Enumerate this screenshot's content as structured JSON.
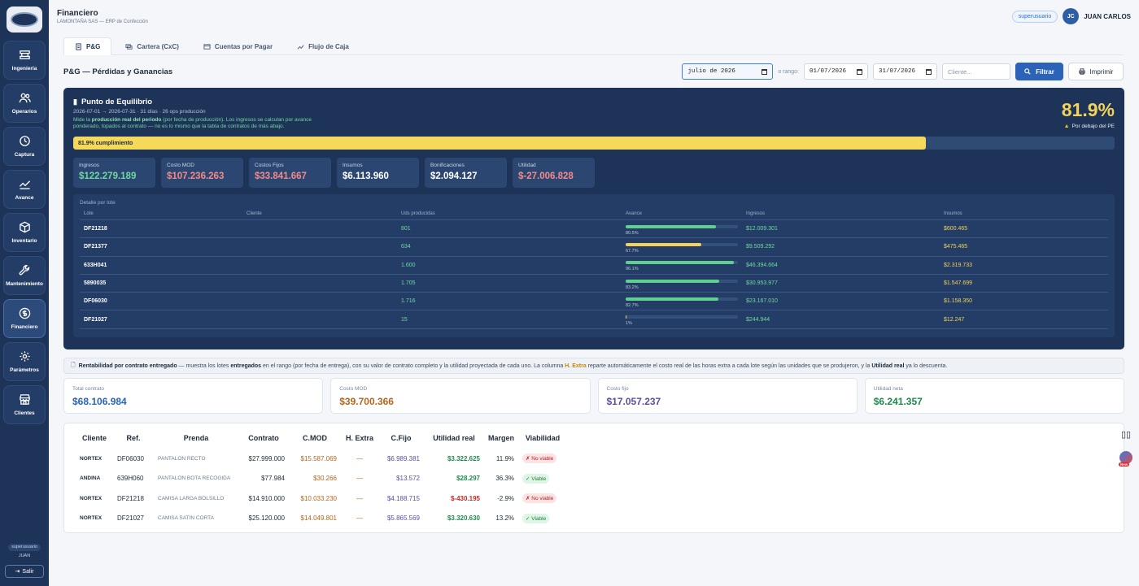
{
  "app": {
    "title": "Financiero",
    "subtitle": "LAMONTAÑA SAS — ERP de Confección"
  },
  "user": {
    "role": "superusuario",
    "initials": "JC",
    "name": "JUAN CARLOS",
    "side_role": "superusuario",
    "side_name": "JUAN"
  },
  "sidebar": {
    "items": [
      {
        "label": "Ingeniería",
        "icon": "engineering-icon"
      },
      {
        "label": "Operarios",
        "icon": "users-icon"
      },
      {
        "label": "Captura",
        "icon": "clock-icon"
      },
      {
        "label": "Avance",
        "icon": "trend-icon"
      },
      {
        "label": "Inventario",
        "icon": "box-icon"
      },
      {
        "label": "Mantenimiento",
        "icon": "wrench-icon"
      },
      {
        "label": "Financiero",
        "icon": "money-icon"
      },
      {
        "label": "Parámetros",
        "icon": "gear-icon"
      },
      {
        "label": "Clientes",
        "icon": "store-icon"
      }
    ],
    "logout": "Salir"
  },
  "tabs": [
    "P&G",
    "Cartera (CxC)",
    "Cuentas por Pagar",
    "Flujo de Caja"
  ],
  "section_title": "P&G — Pérdidas y Ganancias",
  "filters": {
    "month": "julio de 2026",
    "o_rango": "o rango:",
    "date_from": "01/07/2026",
    "date_to": "31/07/2026",
    "client_placeholder": "Cliente...",
    "filter_btn": "Filtrar",
    "print_btn": "Imprimir"
  },
  "pe": {
    "title": "Punto de Equilibrio",
    "sub": "2026-07-01 → 2026-07-31 · 31 días · 26 ops producción",
    "desc_pre": "Mide la ",
    "desc_bold": "producción real del periodo",
    "desc_post": " (por fecha de producción). Los ingresos se calculan por avance ponderado, topados al contrato — no es lo mismo que la tabla de contratos de más abajo.",
    "pct": "81.9%",
    "pct_value": 81.9,
    "pct_note": "Por debajo del PE",
    "bar_label": "81.9% cumplimiento",
    "kpis": [
      {
        "label": "Ingresos",
        "value": "$122.279.189",
        "color": "#6fd8a0"
      },
      {
        "label": "Costo MOD",
        "value": "$107.236.263",
        "color": "#f28b8b"
      },
      {
        "label": "Costos Fijos",
        "value": "$33.841.667",
        "color": "#f28b8b"
      },
      {
        "label": "Insumos",
        "value": "$6.113.960",
        "color": "#ffffff"
      },
      {
        "label": "Bonificaciones",
        "value": "$2.094.127",
        "color": "#ffffff"
      },
      {
        "label": "Utilidad",
        "value": "$-27.006.828",
        "color": "#f28b8b"
      }
    ],
    "lots_title": "Detalle por lote",
    "lots_headers": [
      "Lote",
      "Cliente",
      "Uds producidas",
      "Avance",
      "Ingresos",
      "Insumos"
    ],
    "lots": [
      {
        "lote": "DF21218",
        "cliente": "",
        "uds": "801",
        "avance": 80.5,
        "avance_txt": "80.5%",
        "ingresos": "$12.009.301",
        "insumos": "$600.465"
      },
      {
        "lote": "DF21377",
        "cliente": "",
        "uds": "634",
        "avance": 67.7,
        "avance_txt": "67.7%",
        "ingresos": "$9.509.292",
        "insumos": "$475.465"
      },
      {
        "lote": "633H041",
        "cliente": "",
        "uds": "1.600",
        "avance": 96.1,
        "avance_txt": "96.1%",
        "ingresos": "$46.394.664",
        "insumos": "$2.319.733"
      },
      {
        "lote": "5890035",
        "cliente": "",
        "uds": "1.705",
        "avance": 83.2,
        "avance_txt": "83.2%",
        "ingresos": "$30.953.977",
        "insumos": "$1.547.699"
      },
      {
        "lote": "DF06030",
        "cliente": "",
        "uds": "1.716",
        "avance": 82.7,
        "avance_txt": "82.7%",
        "ingresos": "$23.167.010",
        "insumos": "$1.158.350"
      },
      {
        "lote": "DF21027",
        "cliente": "",
        "uds": "15",
        "avance": 1,
        "avance_txt": "1%",
        "ingresos": "$244.944",
        "insumos": "$12.247"
      }
    ]
  },
  "note": {
    "b1": "Rentabilidad por contrato entregado",
    "t1": " — muestra los lotes ",
    "b2": "entregados",
    "t2": " en el rango (por fecha de entrega), con su valor de contrato completo y la utilidad proyectada de cada uno. La columna ",
    "hx": "H. Extra",
    "t3": " reparte automáticamente el costo real de las horas extra a cada lote según las unidades que se produjeron, y la ",
    "b3": "Utilidad real",
    "t4": " ya lo descuenta."
  },
  "summary": [
    {
      "label": "Total contrato",
      "value": "$68.106.984",
      "color": "#2a63b8"
    },
    {
      "label": "Costo MOD",
      "value": "$39.700.366",
      "color": "#b5651d"
    },
    {
      "label": "Costo fijo",
      "value": "$17.057.237",
      "color": "#5a4fa0"
    },
    {
      "label": "Utilidad neta",
      "value": "$6.241.357",
      "color": "#1f8a4c"
    }
  ],
  "contracts": {
    "headers": [
      "Cliente",
      "Ref.",
      "Prenda",
      "Contrato",
      "C.MOD",
      "H. Extra",
      "C.Fijo",
      "Utilidad real",
      "Margen",
      "Viabilidad"
    ],
    "rows": [
      {
        "cliente": "NORTEX",
        "ref": "DF06030",
        "prenda": "PANTALON RECTO",
        "contrato": "$27.999.000",
        "cmod": "$15.587.069",
        "hextra": "—",
        "cfijo": "$6.989.381",
        "util": "$3.322.625",
        "util_color": "#1f8a4c",
        "margen": "11.9%",
        "viab": "✗ No viable",
        "viable": false
      },
      {
        "cliente": "ANDINA",
        "ref": "639H060",
        "prenda": "PANTALON BOTA RECOGIDA",
        "contrato": "$77.984",
        "cmod": "$30.266",
        "hextra": "—",
        "cfijo": "$13.572",
        "util": "$28.297",
        "util_color": "#1f8a4c",
        "margen": "36.3%",
        "viab": "✓ Viable",
        "viable": true
      },
      {
        "cliente": "NORTEX",
        "ref": "DF21218",
        "prenda": "CAMISA LARGA BOLSILLO",
        "contrato": "$14.910.000",
        "cmod": "$10.033.230",
        "hextra": "—",
        "cfijo": "$4.188.715",
        "util": "$-430.195",
        "util_color": "#c62828",
        "margen": "-2.9%",
        "viab": "✗ No viable",
        "viable": false
      },
      {
        "cliente": "NORTEX",
        "ref": "DF21027",
        "prenda": "CAMISA SATIN CORTA",
        "contrato": "$25.120.000",
        "cmod": "$14.049.801",
        "hextra": "—",
        "cfijo": "$5.865.569",
        "util": "$3.320.630",
        "util_color": "#1f8a4c",
        "margen": "13.2%",
        "viab": "✓ Viable",
        "viable": true
      }
    ]
  }
}
